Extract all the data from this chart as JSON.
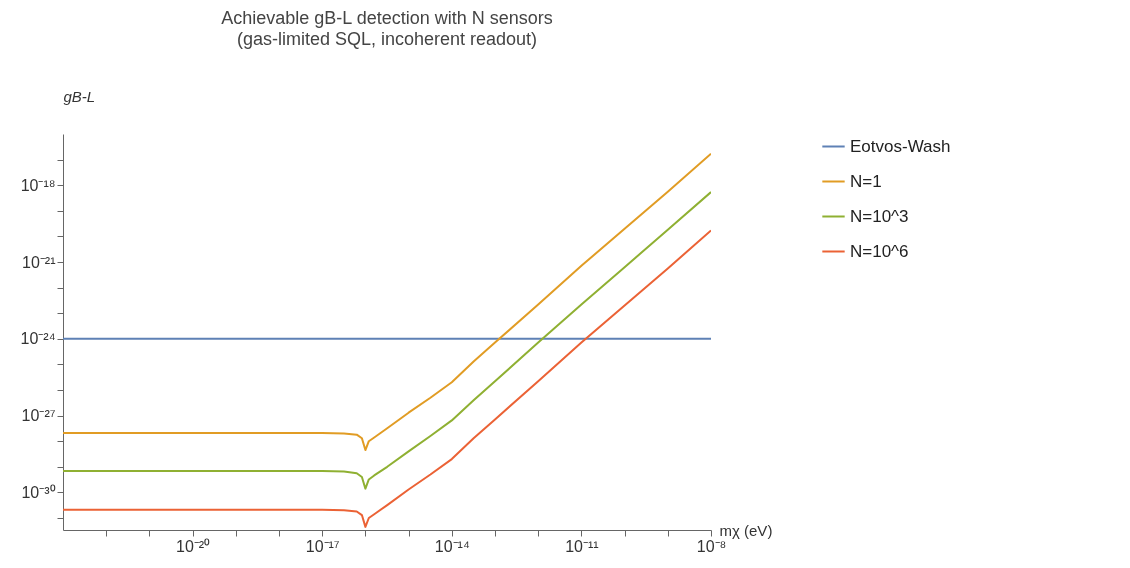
{
  "chart_data": {
    "type": "line",
    "title": "Achievable gB-L detection with N sensors",
    "subtitle": "(gas-limited SQL, incoherent readout)",
    "xlabel": "mχ (eV)",
    "ylabel": "gB-L",
    "log": "xy",
    "grid": false,
    "legend": "right",
    "marker": "none",
    "line_style": "solid",
    "xlim": [
      1e-23,
      1e-08
    ],
    "ylim": [
      3.4e-32,
      1e-16
    ],
    "xticks": [
      {
        "value": 1e-22,
        "label": null
      },
      {
        "value": 1e-21,
        "label": null
      },
      {
        "value": 1e-20,
        "label": "10⁻²⁰"
      },
      {
        "value": 1e-19,
        "label": null
      },
      {
        "value": 1e-18,
        "label": null
      },
      {
        "value": 1e-17,
        "label": "10⁻¹⁷"
      },
      {
        "value": 1e-16,
        "label": null
      },
      {
        "value": 1e-15,
        "label": null
      },
      {
        "value": 1e-14,
        "label": "10⁻¹⁴"
      },
      {
        "value": 1e-13,
        "label": null
      },
      {
        "value": 1e-12,
        "label": null
      },
      {
        "value": 1e-11,
        "label": "10⁻¹¹"
      },
      {
        "value": 1e-10,
        "label": null
      },
      {
        "value": 1e-09,
        "label": null
      },
      {
        "value": 1e-08,
        "label": "10⁻⁸"
      }
    ],
    "yticks": [
      {
        "value": 1e-31,
        "label": null
      },
      {
        "value": 1e-30,
        "label": "10⁻³⁰"
      },
      {
        "value": 1e-29,
        "label": null
      },
      {
        "value": 1e-28,
        "label": null
      },
      {
        "value": 1e-27,
        "label": "10⁻²⁷"
      },
      {
        "value": 1e-26,
        "label": null
      },
      {
        "value": 1e-25,
        "label": null
      },
      {
        "value": 1e-24,
        "label": "10⁻²⁴"
      },
      {
        "value": 1e-23,
        "label": null
      },
      {
        "value": 1e-22,
        "label": null
      },
      {
        "value": 1e-21,
        "label": "10⁻²¹"
      },
      {
        "value": 1e-20,
        "label": null
      },
      {
        "value": 1e-19,
        "label": null
      },
      {
        "value": 1e-18,
        "label": "10⁻¹⁸"
      },
      {
        "value": 1e-17,
        "label": null
      }
    ],
    "x": [
      1e-23,
      1e-17,
      3.2e-17,
      6.3e-17,
      8.3e-17,
      1e-16,
      1.2e-16,
      1.6e-16,
      3.2e-16,
      1e-15,
      3.2e-15,
      1e-14,
      3.2e-14,
      1e-13,
      1e-12,
      1e-11,
      1e-10,
      1e-09,
      1e-08
    ],
    "series": [
      {
        "name": "Eotvos-Wash",
        "color": "#5e81b5",
        "x": [
          1e-23,
          1e-08
        ],
        "values": [
          1e-24,
          1e-24
        ]
      },
      {
        "name": "N=1",
        "color": "#e19c24",
        "values": [
          2.1e-28,
          2.1e-28,
          2e-28,
          1.8e-28,
          1.3e-28,
          4.5e-29,
          1e-28,
          1.4e-28,
          3.2e-28,
          1.3e-27,
          5e-27,
          2e-26,
          1.3e-25,
          7.1e-25,
          2.2e-23,
          7.1e-22,
          2e-20,
          5.6e-19,
          1.7e-17
        ]
      },
      {
        "name": "N=10^3",
        "color": "#8fb032",
        "values": [
          6.8e-30,
          6.8e-30,
          6.5e-30,
          5.6e-30,
          4e-30,
          1.4e-30,
          3.2e-30,
          4.6e-30,
          1e-29,
          4e-29,
          1.6e-28,
          6.5e-28,
          4e-27,
          2.2e-26,
          7.1e-25,
          2.2e-23,
          6.3e-22,
          1.8e-20,
          5.4e-19
        ]
      },
      {
        "name": "N=10^6",
        "color": "#eb6235",
        "values": [
          2.1e-31,
          2.1e-31,
          2e-31,
          1.8e-31,
          1.3e-31,
          4.5e-32,
          1e-31,
          1.4e-31,
          3.2e-31,
          1.3e-30,
          5e-30,
          2e-29,
          1.3e-28,
          7.1e-28,
          2.2e-26,
          7.1e-25,
          2e-23,
          5.6e-22,
          1.7e-20
        ]
      }
    ]
  }
}
